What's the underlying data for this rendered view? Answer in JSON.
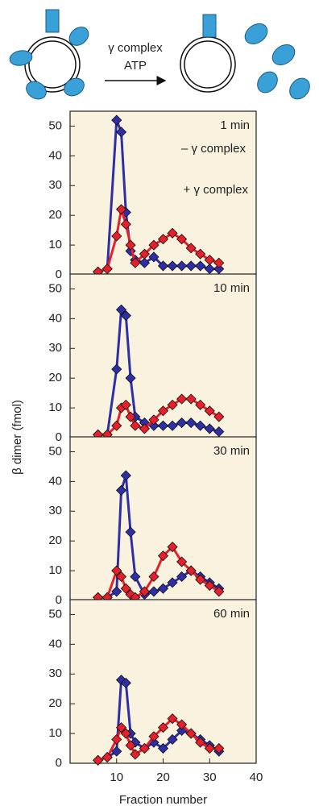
{
  "diagram": {
    "labels": [
      "γ complex",
      "ATP"
    ]
  },
  "chart_data": [
    {
      "type": "line",
      "annotation": "1 min",
      "ylabel": "β dimer (fmol)",
      "xlim": [
        0,
        40
      ],
      "ylim": [
        0,
        55
      ],
      "yticks": [
        0,
        10,
        20,
        30,
        40,
        50
      ],
      "x": [
        6,
        8,
        10,
        11,
        12,
        13,
        14,
        16,
        18,
        20,
        22,
        24,
        26,
        28,
        30,
        32
      ],
      "series": [
        {
          "name": "– γ complex",
          "color": "#2e2ea6",
          "values": [
            1,
            2,
            52,
            48,
            21,
            8,
            5,
            4,
            6,
            3,
            3,
            3,
            3,
            3,
            2,
            2
          ]
        },
        {
          "name": "+ γ complex",
          "color": "#e5202b",
          "values": [
            1,
            2,
            13,
            22,
            17,
            10,
            4,
            7,
            10,
            12,
            14,
            12,
            9,
            7,
            5,
            4
          ]
        }
      ]
    },
    {
      "type": "line",
      "annotation": "10 min",
      "xlim": [
        0,
        40
      ],
      "ylim": [
        0,
        55
      ],
      "yticks": [
        0,
        10,
        20,
        30,
        40,
        50
      ],
      "x": [
        6,
        8,
        10,
        11,
        12,
        13,
        14,
        16,
        18,
        20,
        22,
        24,
        26,
        28,
        30,
        32
      ],
      "series": [
        {
          "color": "#2e2ea6",
          "values": [
            1,
            1,
            23,
            43,
            41,
            20,
            7,
            5,
            4,
            4,
            4,
            5,
            5,
            4,
            3,
            2
          ]
        },
        {
          "color": "#e5202b",
          "values": [
            1,
            1,
            4,
            10,
            11,
            7,
            4,
            3,
            6,
            9,
            11,
            13,
            13,
            11,
            9,
            7
          ]
        }
      ]
    },
    {
      "type": "line",
      "annotation": "30 min",
      "xlim": [
        0,
        40
      ],
      "ylim": [
        0,
        55
      ],
      "yticks": [
        0,
        10,
        20,
        30,
        40,
        50
      ],
      "x": [
        6,
        8,
        10,
        11,
        12,
        13,
        14,
        16,
        18,
        20,
        22,
        24,
        26,
        28,
        30,
        32
      ],
      "series": [
        {
          "color": "#2e2ea6",
          "values": [
            1,
            1,
            3,
            37,
            42,
            23,
            8,
            2,
            3,
            4,
            6,
            8,
            10,
            8,
            6,
            4
          ]
        },
        {
          "color": "#e5202b",
          "values": [
            1,
            1,
            10,
            8,
            4,
            2,
            1,
            3,
            8,
            15,
            18,
            13,
            10,
            7,
            5,
            3
          ]
        }
      ]
    },
    {
      "type": "line",
      "annotation": "60 min",
      "xlabel": "Fraction number",
      "xlim": [
        0,
        40
      ],
      "xticks": [
        10,
        20,
        30,
        40
      ],
      "ylim": [
        0,
        55
      ],
      "yticks": [
        0,
        10,
        20,
        30,
        40,
        50
      ],
      "x": [
        6,
        8,
        10,
        11,
        12,
        13,
        14,
        16,
        18,
        20,
        22,
        24,
        26,
        28,
        30,
        32
      ],
      "series": [
        {
          "color": "#2e2ea6",
          "values": [
            1,
            2,
            4,
            28,
            27,
            10,
            7,
            5,
            7,
            5,
            8,
            11,
            10,
            8,
            6,
            4
          ]
        },
        {
          "color": "#e5202b",
          "values": [
            1,
            2,
            8,
            12,
            10,
            6,
            3,
            5,
            9,
            12,
            15,
            13,
            10,
            7,
            5,
            5
          ]
        }
      ]
    }
  ]
}
